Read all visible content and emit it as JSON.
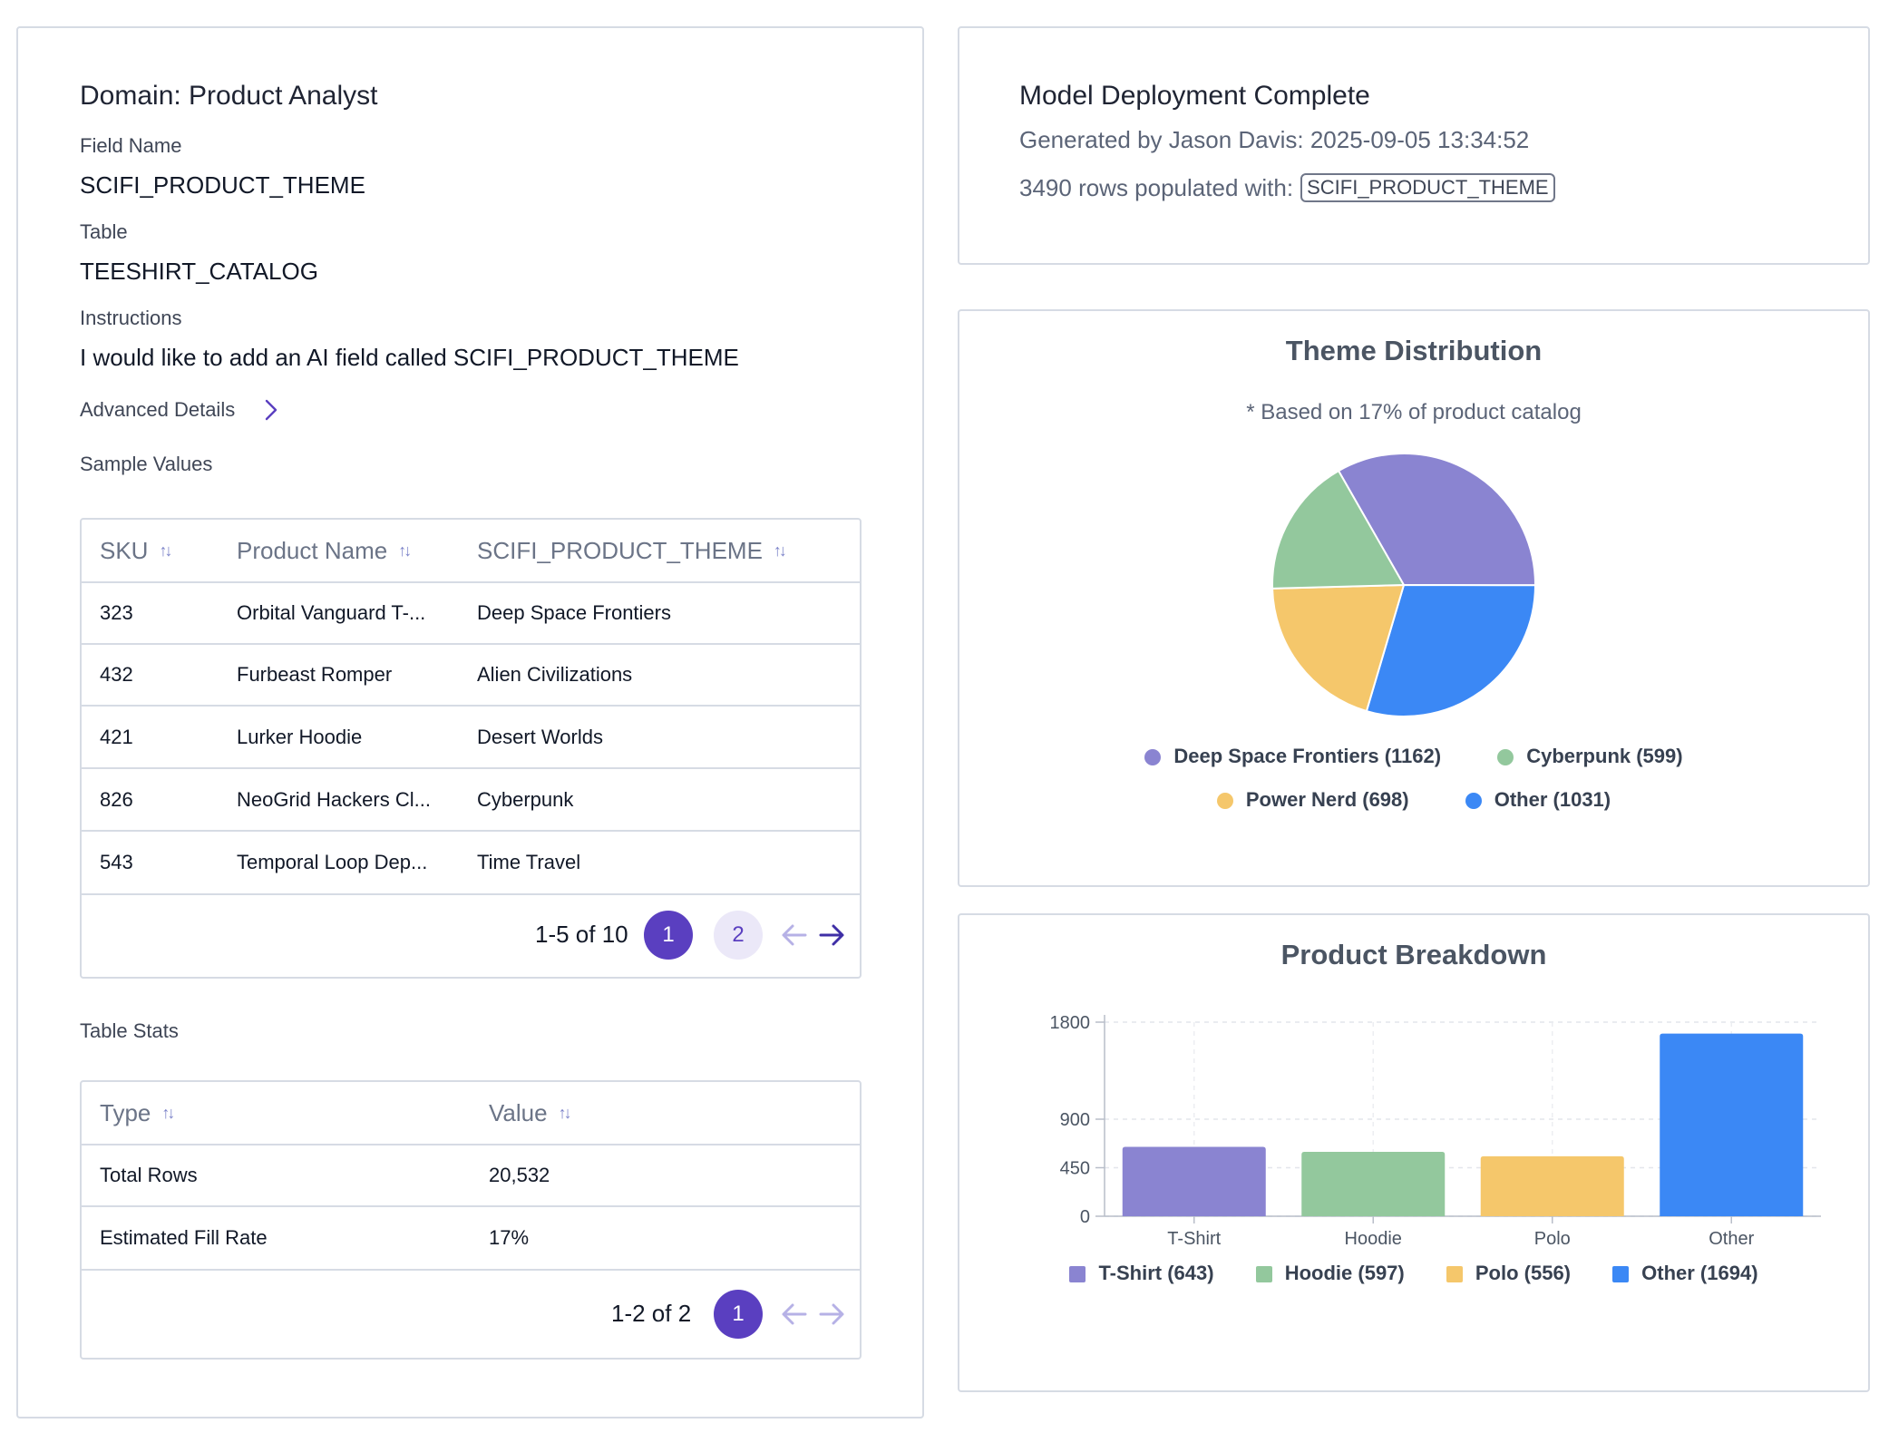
{
  "domain_panel": {
    "title": "Domain: Product Analyst",
    "field_name_label": "Field Name",
    "field_name_value": "SCIFI_PRODUCT_THEME",
    "table_label": "Table",
    "table_value": "TEESHIRT_CATALOG",
    "instructions_label": "Instructions",
    "instructions_value": "I would like to add an AI field called SCIFI_PRODUCT_THEME",
    "advanced_details_label": "Advanced Details",
    "sample_values_label": "Sample Values",
    "table_stats_label": "Table Stats"
  },
  "sample_table": {
    "headers": [
      "SKU",
      "Product Name",
      "SCIFI_PRODUCT_THEME"
    ],
    "rows": [
      [
        "323",
        "Orbital Vanguard T-...",
        "Deep Space Frontiers"
      ],
      [
        "432",
        "Furbeast Romper",
        "Alien Civilizations"
      ],
      [
        "421",
        "Lurker Hoodie",
        "Desert Worlds"
      ],
      [
        "826",
        "NeoGrid Hackers Cl...",
        "Cyberpunk"
      ],
      [
        "543",
        "Temporal Loop Dep...",
        "Time Travel"
      ]
    ],
    "pagination": {
      "range": "1-5 of 10",
      "pages": [
        "1",
        "2"
      ],
      "current_page": "1"
    }
  },
  "stats_table": {
    "headers": [
      "Type",
      "Value"
    ],
    "rows": [
      [
        "Total Rows",
        "20,532"
      ],
      [
        "Estimated Fill Rate",
        "17%"
      ]
    ],
    "pagination": {
      "range": "1-2 of 2",
      "pages": [
        "1"
      ],
      "current_page": "1"
    }
  },
  "deployment": {
    "title": "Model Deployment Complete",
    "generated_by": "Generated by Jason Davis: 2025-09-05 13:34:52",
    "rows_text": "3490 rows populated with:",
    "field_chip": "SCIFI_PRODUCT_THEME"
  },
  "colors": {
    "accent": "#5a3fc0",
    "purple": "#8a84d1",
    "green": "#93c89d",
    "yellow": "#f5c76b",
    "blue": "#3b88f5"
  },
  "chart_data": [
    {
      "type": "pie",
      "title": "Theme Distribution",
      "subtitle": "* Based on 17% of product catalog",
      "slices": [
        {
          "label": "Deep Space Frontiers (1162)",
          "value": 1162,
          "color": "#8a84d1"
        },
        {
          "label": "Other (1031)",
          "value": 1031,
          "color": "#3b88f5"
        },
        {
          "label": "Power Nerd (698)",
          "value": 698,
          "color": "#f5c76b"
        },
        {
          "label": "Cyberpunk (599)",
          "value": 599,
          "color": "#93c89d"
        }
      ],
      "legend_order": [
        "Deep Space Frontiers (1162)",
        "Cyberpunk (599)",
        "Power Nerd (698)",
        "Other (1031)"
      ],
      "legend_placement": "bottom"
    },
    {
      "type": "bar",
      "title": "Product Breakdown",
      "categories": [
        "T-Shirt",
        "Hoodie",
        "Polo",
        "Other"
      ],
      "values": [
        643,
        597,
        556,
        1694
      ],
      "colors": [
        "#8a84d1",
        "#93c89d",
        "#f5c76b",
        "#3b88f5"
      ],
      "legend": [
        "T-Shirt (643)",
        "Hoodie (597)",
        "Polo (556)",
        "Other (1694)"
      ],
      "yticks": [
        0,
        450,
        900,
        1800
      ],
      "ylim": [
        0,
        1800
      ],
      "grid": true,
      "legend_placement": "bottom"
    }
  ]
}
